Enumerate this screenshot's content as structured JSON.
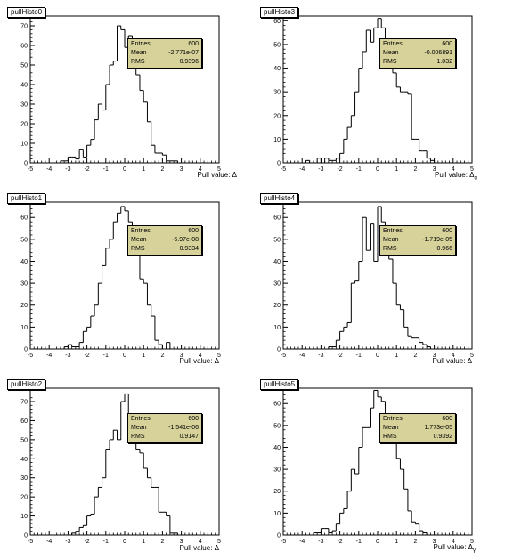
{
  "chart_data": [
    {
      "type": "histogram",
      "title": "pullHisto0",
      "xlabel": "Pull value: Δ",
      "xlim": [
        -5,
        5
      ],
      "ylim": [
        0,
        75
      ],
      "xticks": [
        -5,
        -4,
        -3,
        -2,
        -1,
        0,
        1,
        2,
        3,
        4,
        5
      ],
      "yticks": [
        0,
        10,
        20,
        30,
        40,
        50,
        60,
        70
      ],
      "bin_width": 0.2,
      "bin_low_edges": [
        -3.4,
        -3.2,
        -3.0,
        -2.8,
        -2.6,
        -2.4,
        -2.2,
        -2.0,
        -1.8,
        -1.6,
        -1.4,
        -1.2,
        -1.0,
        -0.8,
        -0.6,
        -0.4,
        -0.2,
        0.0,
        0.2,
        0.4,
        0.6,
        0.8,
        1.0,
        1.2,
        1.4,
        1.6,
        1.8,
        2.0,
        2.2,
        2.4,
        2.6,
        2.8
      ],
      "values": [
        1,
        1,
        3,
        3,
        2,
        7,
        3,
        9,
        12,
        22,
        30,
        27,
        40,
        50,
        52,
        70,
        68,
        59,
        65,
        58,
        45,
        37,
        31,
        21,
        9,
        5,
        5,
        4,
        1,
        1,
        1,
        0
      ],
      "stats": {
        "entries_label": "Entries",
        "entries": "600",
        "mean_label": "Mean",
        "mean": "-2.771e-07",
        "rms_label": "RMS",
        "rms": "0.9396"
      }
    },
    {
      "type": "histogram",
      "title": "pullHisto3",
      "xlabel": "Pull value: Δ",
      "xlabel_subscript": "α",
      "xlim": [
        -5,
        5
      ],
      "ylim": [
        0,
        62
      ],
      "xticks": [
        -5,
        -4,
        -3,
        -2,
        -1,
        0,
        1,
        2,
        3,
        4,
        5
      ],
      "yticks": [
        0,
        10,
        20,
        30,
        40,
        50,
        60
      ],
      "bin_width": 0.2,
      "bin_low_edges": [
        -3.8,
        -3.6,
        -3.4,
        -3.2,
        -3.0,
        -2.8,
        -2.6,
        -2.4,
        -2.2,
        -2.0,
        -1.8,
        -1.6,
        -1.4,
        -1.2,
        -1.0,
        -0.8,
        -0.6,
        -0.4,
        -0.2,
        0.0,
        0.2,
        0.4,
        0.6,
        0.8,
        1.0,
        1.2,
        1.4,
        1.6,
        1.8,
        2.0,
        2.2,
        2.4,
        2.6,
        2.8,
        3.0
      ],
      "values": [
        1,
        0,
        0,
        2,
        0,
        2,
        1,
        1,
        2,
        4,
        10,
        15,
        20,
        30,
        40,
        47,
        56,
        51,
        57,
        61,
        57,
        49,
        47,
        38,
        32,
        30,
        30,
        29,
        10,
        10,
        5,
        5,
        2,
        1,
        0
      ],
      "stats": {
        "entries_label": "Entries",
        "entries": "600",
        "mean_label": "Mean",
        "mean": "-0.006891",
        "rms_label": "RMS",
        "rms": "1.032"
      }
    },
    {
      "type": "histogram",
      "title": "pullHisto1",
      "xlabel": "Pull value: Δ",
      "xlim": [
        -5,
        5
      ],
      "ylim": [
        0,
        67
      ],
      "xticks": [
        -5,
        -4,
        -3,
        -2,
        -1,
        0,
        1,
        2,
        3,
        4,
        5
      ],
      "yticks": [
        0,
        10,
        20,
        30,
        40,
        50,
        60
      ],
      "bin_width": 0.2,
      "bin_low_edges": [
        -3.2,
        -3.0,
        -2.8,
        -2.6,
        -2.4,
        -2.2,
        -2.0,
        -1.8,
        -1.6,
        -1.4,
        -1.2,
        -1.0,
        -0.8,
        -0.6,
        -0.4,
        -0.2,
        0.0,
        0.2,
        0.4,
        0.6,
        0.8,
        1.0,
        1.2,
        1.4,
        1.6,
        1.8,
        2.0,
        2.2,
        2.4,
        2.6
      ],
      "values": [
        1,
        2,
        1,
        1,
        3,
        8,
        10,
        15,
        20,
        30,
        38,
        46,
        50,
        58,
        62,
        65,
        63,
        58,
        50,
        45,
        32,
        30,
        20,
        15,
        4,
        2,
        0,
        3,
        0,
        0
      ],
      "stats": {
        "entries_label": "Entries",
        "entries": "600",
        "mean_label": "Mean",
        "mean": "-6.97e-08",
        "rms_label": "RMS",
        "rms": "0.9334"
      }
    },
    {
      "type": "histogram",
      "title": "pullHisto4",
      "xlabel": "Pull value: Δ",
      "xlim": [
        -5,
        5
      ],
      "ylim": [
        0,
        67
      ],
      "xticks": [
        -5,
        -4,
        -3,
        -2,
        -1,
        0,
        1,
        2,
        3,
        4,
        5
      ],
      "yticks": [
        0,
        10,
        20,
        30,
        40,
        50,
        60
      ],
      "bin_width": 0.2,
      "bin_low_edges": [
        -2.6,
        -2.4,
        -2.2,
        -2.0,
        -1.8,
        -1.6,
        -1.4,
        -1.2,
        -1.0,
        -0.8,
        -0.6,
        -0.4,
        -0.2,
        0.0,
        0.2,
        0.4,
        0.6,
        0.8,
        1.0,
        1.2,
        1.4,
        1.6,
        1.8,
        2.0,
        2.2,
        2.4,
        2.6
      ],
      "values": [
        1,
        1,
        4,
        8,
        10,
        12,
        30,
        31,
        40,
        60,
        45,
        57,
        40,
        65,
        58,
        47,
        41,
        30,
        20,
        18,
        10,
        6,
        5,
        5,
        3,
        2,
        1
      ],
      "stats": {
        "entries_label": "Entries",
        "entries": "600",
        "mean_label": "Mean",
        "mean": "-1.719e-05",
        "rms_label": "RMS",
        "rms": "0.966"
      }
    },
    {
      "type": "histogram",
      "title": "pullHisto2",
      "xlabel": "Pull value: Δ",
      "xlim": [
        -5,
        5
      ],
      "ylim": [
        0,
        77
      ],
      "xticks": [
        -5,
        -4,
        -3,
        -2,
        -1,
        0,
        1,
        2,
        3,
        4,
        5
      ],
      "yticks": [
        0,
        10,
        20,
        30,
        40,
        50,
        60,
        70
      ],
      "bin_width": 0.2,
      "bin_low_edges": [
        -2.8,
        -2.6,
        -2.4,
        -2.2,
        -2.0,
        -1.8,
        -1.6,
        -1.4,
        -1.2,
        -1.0,
        -0.8,
        -0.6,
        -0.4,
        -0.2,
        0.0,
        0.2,
        0.4,
        0.6,
        0.8,
        1.0,
        1.2,
        1.4,
        1.6,
        1.8,
        2.0,
        2.2,
        2.4,
        2.6
      ],
      "values": [
        1,
        2,
        4,
        5,
        10,
        11,
        20,
        25,
        30,
        45,
        50,
        55,
        50,
        70,
        74,
        60,
        55,
        45,
        43,
        35,
        30,
        25,
        25,
        12,
        12,
        10,
        1,
        1
      ],
      "stats": {
        "entries_label": "Entries",
        "entries": "600",
        "mean_label": "Mean",
        "mean": "-1.541e-06",
        "rms_label": "RMS",
        "rms": "0.9147"
      }
    },
    {
      "type": "histogram",
      "title": "pullHisto5",
      "xlabel": "Pull value: Δ",
      "xlabel_subscript": "γ",
      "xlim": [
        -5,
        5
      ],
      "ylim": [
        0,
        67
      ],
      "xticks": [
        -5,
        -4,
        -3,
        -2,
        -1,
        0,
        1,
        2,
        3,
        4,
        5
      ],
      "yticks": [
        0,
        10,
        20,
        30,
        40,
        50,
        60
      ],
      "bin_width": 0.2,
      "bin_low_edges": [
        -3.4,
        -3.2,
        -3.0,
        -2.8,
        -2.6,
        -2.4,
        -2.2,
        -2.0,
        -1.8,
        -1.6,
        -1.4,
        -1.2,
        -1.0,
        -0.8,
        -0.6,
        -0.4,
        -0.2,
        0.0,
        0.2,
        0.4,
        0.6,
        0.8,
        1.0,
        1.2,
        1.4,
        1.6,
        1.8,
        2.0,
        2.2,
        2.4,
        2.6
      ],
      "values": [
        1,
        1,
        3,
        3,
        1,
        2,
        5,
        10,
        12,
        20,
        30,
        28,
        40,
        49,
        49,
        58,
        66,
        63,
        61,
        52,
        45,
        45,
        35,
        30,
        21,
        11,
        6,
        5,
        2,
        1,
        0
      ],
      "stats": {
        "entries_label": "Entries",
        "entries": "600",
        "mean_label": "Mean",
        "mean": "1.773e-05",
        "rms_label": "RMS",
        "rms": "0.9392"
      }
    }
  ]
}
